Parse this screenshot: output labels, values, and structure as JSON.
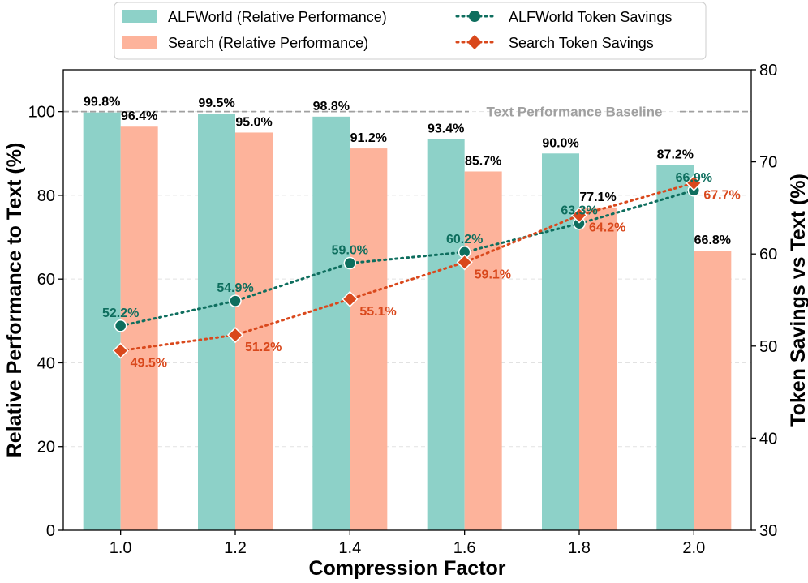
{
  "chart_data": {
    "type": "bar",
    "categories": [
      "1.0",
      "1.2",
      "1.4",
      "1.6",
      "1.8",
      "2.0"
    ],
    "xlabel": "Compression Factor",
    "ylabel": "Relative Performance to Text (%)",
    "y2label": "Token Savings vs Text (%)",
    "ylim": [
      0,
      110
    ],
    "y2lim": [
      30,
      80
    ],
    "yticks": [
      0,
      20,
      40,
      60,
      80,
      100
    ],
    "y2ticks": [
      30,
      40,
      50,
      60,
      70,
      80
    ],
    "grid": true,
    "legend_placement": "top-center",
    "baseline": {
      "value": 100,
      "label": "Text Performance Baseline",
      "color": "#a0a0a0"
    },
    "bar_series": [
      {
        "name": "ALFWorld (Relative Performance)",
        "color": "#8dd1c8",
        "values": [
          99.8,
          99.5,
          98.8,
          93.4,
          90.0,
          87.2
        ],
        "labels": [
          "99.8%",
          "99.5%",
          "98.8%",
          "93.4%",
          "90.0%",
          "87.2%"
        ]
      },
      {
        "name": "Search (Relative Performance)",
        "color": "#fdb39b",
        "values": [
          96.4,
          95.0,
          91.2,
          85.7,
          77.1,
          66.8
        ],
        "labels": [
          "96.4%",
          "95.0%",
          "91.2%",
          "85.7%",
          "77.1%",
          "66.8%"
        ]
      }
    ],
    "line_series": [
      {
        "name": "ALFWorld Token Savings",
        "color": "#0e6e5e",
        "marker": "circle",
        "axis": "right",
        "values": [
          52.2,
          54.9,
          59.0,
          60.2,
          63.3,
          66.9
        ],
        "labels": [
          "52.2%",
          "54.9%",
          "59.0%",
          "60.2%",
          "63.3%",
          "66.9%"
        ]
      },
      {
        "name": "Search Token Savings",
        "color": "#d9481c",
        "marker": "diamond",
        "axis": "right",
        "values": [
          49.5,
          51.2,
          55.1,
          59.1,
          64.2,
          67.7
        ],
        "labels": [
          "49.5%",
          "51.2%",
          "55.1%",
          "59.1%",
          "64.2%",
          "67.7%"
        ]
      }
    ]
  }
}
